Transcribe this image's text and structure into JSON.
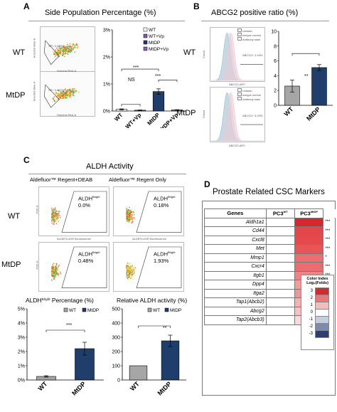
{
  "panels": {
    "A": {
      "letter": "A",
      "title": "Side Population Percentage (%)",
      "row_labels": [
        "WT",
        "MtDP"
      ],
      "sp_labels": [
        "SP+ 0.060%",
        "SP+ 0.657%"
      ],
      "facs_xlabel": "Hoechst Red-A",
      "facs_ylabel": "Hoechst Blue-A",
      "sig": [
        "NS",
        "***",
        "***"
      ]
    },
    "B": {
      "letter": "B",
      "title": "ABCG2 positive ratio (%)",
      "row_labels": [
        "WT",
        "MtDP"
      ],
      "hist_legend": [
        "Unstain",
        "Isotype control",
        "Antibody stain"
      ],
      "hist_values": [
        "ABCG2+ 2.04%",
        "ABCG2+ 4.03%"
      ],
      "hist_xlabel": "ABCG2-APC",
      "hist_ylabel": "Count",
      "sig": "**"
    },
    "C": {
      "letter": "C",
      "title": "ALDH Activity",
      "col_labels": [
        "Aldefluor™ Regent+DEAB",
        "Aldefluor™ Regent Only"
      ],
      "row_labels": [
        "WT",
        "MtDP"
      ],
      "gate_label": "ALDH",
      "gate_sup": "Bright",
      "gate_values": [
        "0.0%",
        "0.18%",
        "0.48%",
        "1.93%"
      ],
      "facs_xlabel": "ALDEFLUOR fluorescence",
      "facs_ylabel": "FSC-A",
      "sig_left": "***",
      "sig_right": "**"
    },
    "D": {
      "letter": "D",
      "title": "Prostate Related CSC Markers",
      "col_genes": "Genes",
      "col_wt": "PC3",
      "col_wt_sup": "WT",
      "col_mt": "PC3",
      "col_mt_sup": "MtDP",
      "legend_title": "Color Index",
      "legend_sub": "Log₂(Folds)",
      "legend_values": [
        "3",
        "2",
        "1",
        "0",
        "-1",
        "-2",
        "-3"
      ],
      "legend_colors": [
        "#d42a2f",
        "#e9777a",
        "#f5bcbd",
        "#ffffff",
        "#c5cde0",
        "#7b8cb3",
        "#2b3f70"
      ],
      "rows": [
        {
          "gene": "Aldh1a1",
          "sig": "***",
          "color": "#d8262c"
        },
        {
          "gene": "Cd44",
          "sig": "***",
          "color": "#e3474c"
        },
        {
          "gene": "Cxcl8",
          "sig": "***",
          "color": "#e4494e"
        },
        {
          "gene": "Met",
          "sig": "***",
          "color": "#e75559"
        },
        {
          "gene": "Mmp1",
          "sig": "*",
          "color": "#eb6f72"
        },
        {
          "gene": "Cxcr4",
          "sig": "***",
          "color": "#eb6d70"
        },
        {
          "gene": "Itgb1",
          "sig": "***",
          "color": "#ee8487"
        },
        {
          "gene": "Dpp4",
          "sig": "***",
          "color": "#f29e9f"
        },
        {
          "gene": "Itga2",
          "sig": "**",
          "color": "#f19597"
        },
        {
          "gene": "Tap1(Abcb2)",
          "sig": "***",
          "color": "#f5b2b3"
        },
        {
          "gene": "Abcg2",
          "sig": "**",
          "color": "#f7c2c3"
        },
        {
          "gene": "Tap2(Abcb3)",
          "sig": "***",
          "color": "#fad9da"
        }
      ]
    }
  },
  "chart_data": [
    {
      "type": "bar",
      "title": "Side Population Percentage (%)",
      "categories": [
        "WT",
        "WT+Vp",
        "MtDP",
        "MtDP+Vp"
      ],
      "values": [
        0.06,
        0.03,
        0.72,
        0.04
      ],
      "errors": [
        0.02,
        0.01,
        0.1,
        0.01
      ],
      "colors": [
        "#ffffff",
        "#7f5fa6",
        "#1f3e6b",
        "#8f64ad"
      ],
      "yticks": [
        "0%",
        "1%",
        "2%",
        "3%"
      ],
      "ylim": [
        0,
        3
      ],
      "legend": [
        "WT",
        "WT+Vp",
        "MtDP",
        "MtDP+Vp"
      ]
    },
    {
      "type": "bar",
      "title": "ABCG2 positive ratio (%)",
      "categories": [
        "WT",
        "MtDP"
      ],
      "values": [
        2.6,
        5.1
      ],
      "errors": [
        0.8,
        0.4
      ],
      "colors": [
        "#a6a6a6",
        "#1f3e6b"
      ],
      "yticks": [
        "0",
        "2",
        "4",
        "6",
        "8",
        "10"
      ],
      "ylim": [
        0,
        10
      ]
    },
    {
      "type": "bar",
      "title": "ALDH",
      "title_sup": "Bright",
      "title_tail": " Percentage (%)",
      "categories": [
        "WT",
        "MtDP"
      ],
      "values": [
        0.25,
        2.2
      ],
      "errors": [
        0.05,
        0.45
      ],
      "colors": [
        "#a6a6a6",
        "#1f3e6b"
      ],
      "yticks": [
        "0%",
        "1%",
        "2%",
        "3%",
        "4%",
        "5%"
      ],
      "ylim": [
        0,
        5
      ],
      "legend": [
        "WT",
        "MtDP"
      ]
    },
    {
      "type": "bar",
      "title": "Relative ALDH activity (%)",
      "categories": [
        "WT",
        "MtDP"
      ],
      "values": [
        100,
        275
      ],
      "errors": [
        0,
        40
      ],
      "colors": [
        "#a6a6a6",
        "#1f3e6b"
      ],
      "yticks": [
        "0",
        "100",
        "200",
        "300",
        "400",
        "500"
      ],
      "ylim": [
        0,
        500
      ],
      "legend": [
        "WT",
        "MtDP"
      ]
    }
  ]
}
